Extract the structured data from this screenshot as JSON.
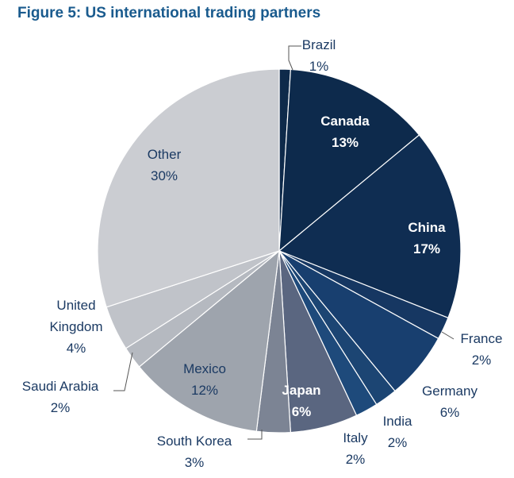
{
  "title": "Figure 5: US international trading partners",
  "chart_data": {
    "type": "pie",
    "title": "Figure 5: US international trading partners",
    "start_angle_deg": 0,
    "direction": "clockwise",
    "slices": [
      {
        "label": "Brazil",
        "value": 1,
        "display": "1%",
        "color": "#0e2a4a"
      },
      {
        "label": "Canada",
        "value": 13,
        "display": "13%",
        "color": "#0d2a4c"
      },
      {
        "label": "China",
        "value": 17,
        "display": "17%",
        "color": "#0f2d52"
      },
      {
        "label": "France",
        "value": 2,
        "display": "2%",
        "color": "#163762"
      },
      {
        "label": "Germany",
        "value": 6,
        "display": "6%",
        "color": "#183f6f"
      },
      {
        "label": "India",
        "value": 2,
        "display": "2%",
        "color": "#1c4573"
      },
      {
        "label": "Italy",
        "value": 2,
        "display": "2%",
        "color": "#1e4a7b"
      },
      {
        "label": "Japan",
        "value": 6,
        "display": "6%",
        "color": "#5a6680"
      },
      {
        "label": "South Korea",
        "value": 3,
        "display": "3%",
        "color": "#7c8494"
      },
      {
        "label": "Mexico",
        "value": 12,
        "display": "12%",
        "color": "#9ea4ad"
      },
      {
        "label": "Saudi Arabia",
        "value": 2,
        "display": "2%",
        "color": "#b5b9c0"
      },
      {
        "label": "United Kingdom",
        "value": 4,
        "display": "4%",
        "color": "#c0c3c9"
      },
      {
        "label": "Other",
        "value": 30,
        "display": "30%",
        "color": "#cbcdd2"
      }
    ],
    "label_color_dark": "#1b3a63",
    "label_color_light": "#ffffff"
  }
}
